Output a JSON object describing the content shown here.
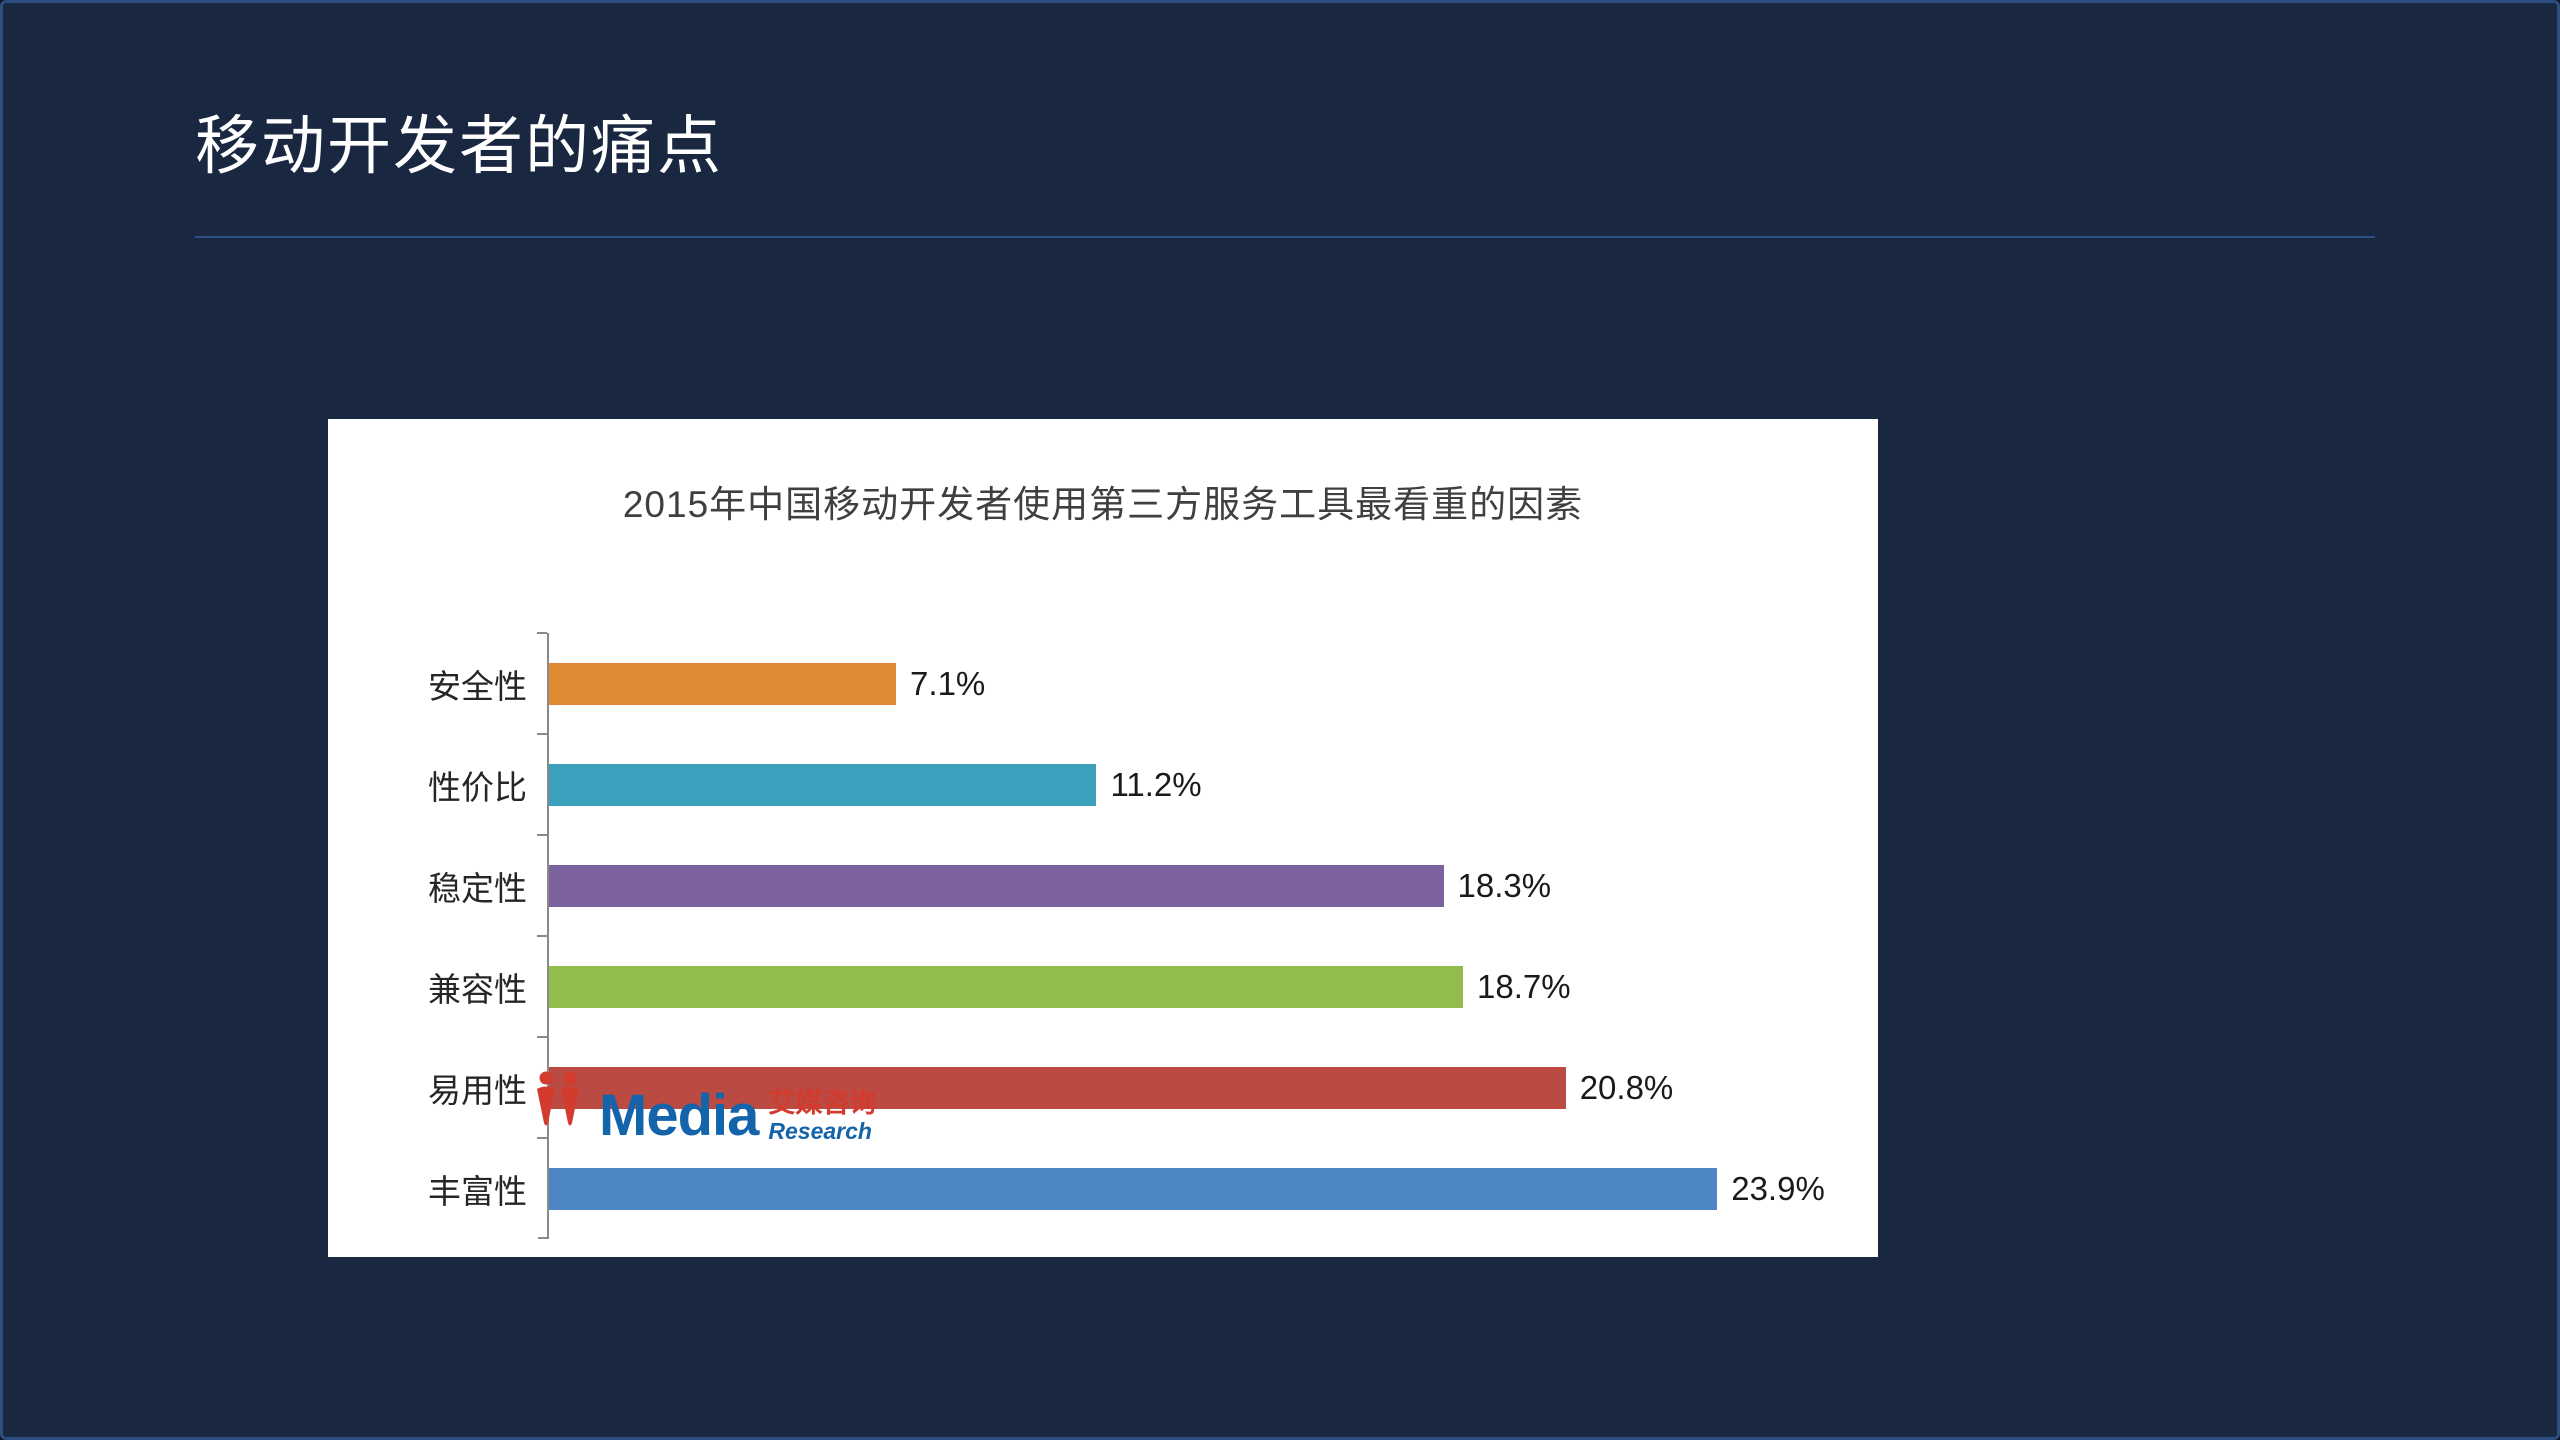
{
  "slide": {
    "title": "移动开发者的痛点"
  },
  "chart_data": {
    "type": "bar",
    "orientation": "horizontal",
    "title": "2015年中国移动开发者使用第三方服务工具最看重的因素",
    "categories": [
      "安全性",
      "性价比",
      "稳定性",
      "兼容性",
      "易用性",
      "丰富性"
    ],
    "values": [
      7.1,
      11.2,
      18.3,
      18.7,
      20.8,
      23.9
    ],
    "value_labels": [
      "7.1%",
      "11.2%",
      "18.3%",
      "18.7%",
      "20.8%",
      "23.9%"
    ],
    "bar_colors": [
      "#DE8A33",
      "#3BA0BC",
      "#7C63A0",
      "#93BC4E",
      "#BA4A42",
      "#4E86C4"
    ],
    "xlim": [
      0,
      25
    ],
    "grid": false,
    "legend": false,
    "axis_color": "#8a8a8a"
  },
  "logo": {
    "media": "Media",
    "cn": "艾媒咨询",
    "research": "Research"
  }
}
